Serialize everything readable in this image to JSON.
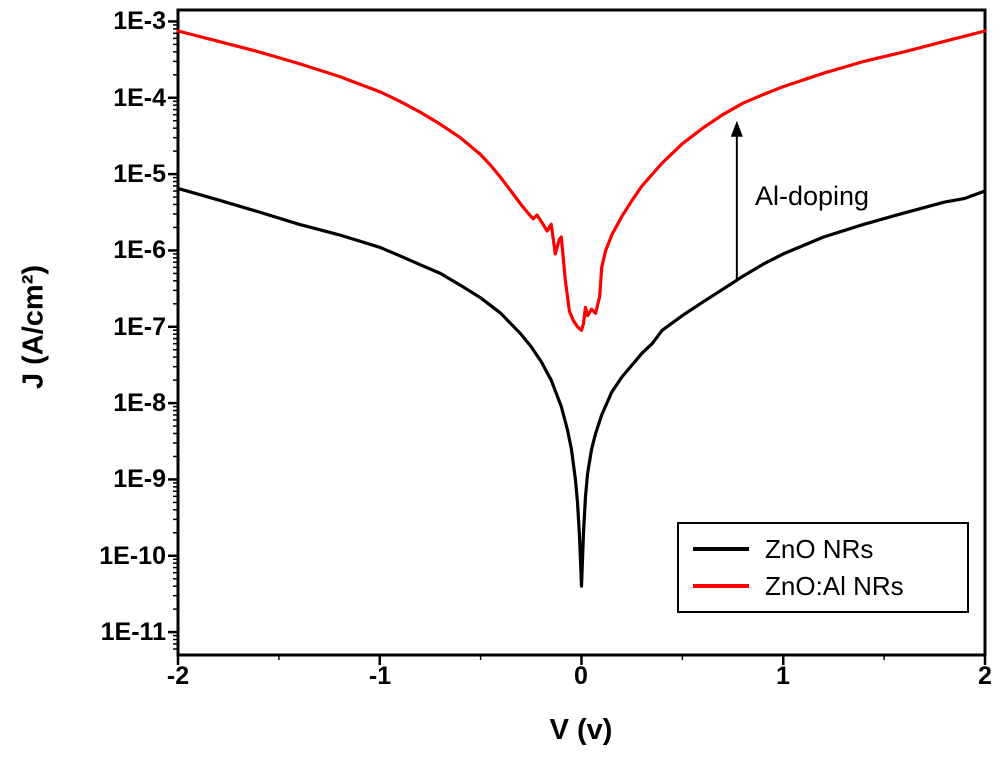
{
  "chart_data": {
    "type": "line",
    "title": "",
    "xlabel": "V (v)",
    "ylabel": "J (A/cm²)",
    "xlim": [
      -2,
      2
    ],
    "ylog_range_exponents": [
      -11.3,
      -2.85
    ],
    "grid": false,
    "x_ticks": [
      -2,
      -1,
      0,
      1,
      2
    ],
    "x_minor_ticks": [
      -1.5,
      -0.5,
      0.5,
      1.5
    ],
    "x_tick_labels": [
      "-2",
      "-1",
      "0",
      "1",
      "2"
    ],
    "y_tick_labels": [
      "1E-3",
      "1E-4",
      "1E-5",
      "1E-6",
      "1E-7",
      "1E-8",
      "1E-9",
      "1E-10",
      "1E-11"
    ],
    "legend_position": "bottom-right-inside",
    "annotation": {
      "text": "Al-doping",
      "arrow": {
        "x": 0.77,
        "from": 4e-07,
        "to": 5e-05
      }
    },
    "series": [
      {
        "name": "ZnO NRs",
        "color": "#000000",
        "points": [
          [
            -2.0,
            6.5e-06
          ],
          [
            -1.8,
            4.6e-06
          ],
          [
            -1.6,
            3.2e-06
          ],
          [
            -1.4,
            2.2e-06
          ],
          [
            -1.2,
            1.6e-06
          ],
          [
            -1.0,
            1.1e-06
          ],
          [
            -0.9,
            8.5e-07
          ],
          [
            -0.8,
            6.5e-07
          ],
          [
            -0.7,
            5e-07
          ],
          [
            -0.6,
            3.5e-07
          ],
          [
            -0.5,
            2.4e-07
          ],
          [
            -0.4,
            1.5e-07
          ],
          [
            -0.3,
            8e-08
          ],
          [
            -0.25,
            5.5e-08
          ],
          [
            -0.2,
            3.5e-08
          ],
          [
            -0.15,
            2e-08
          ],
          [
            -0.1,
            9e-09
          ],
          [
            -0.07,
            4.5e-09
          ],
          [
            -0.05,
            2.5e-09
          ],
          [
            -0.03,
            1e-09
          ],
          [
            -0.02,
            5e-10
          ],
          [
            -0.01,
            1.8e-10
          ],
          [
            0.0,
            4e-11
          ],
          [
            0.01,
            2e-10
          ],
          [
            0.02,
            6e-10
          ],
          [
            0.03,
            1.2e-09
          ],
          [
            0.05,
            2.5e-09
          ],
          [
            0.07,
            4e-09
          ],
          [
            0.1,
            7e-09
          ],
          [
            0.15,
            1.4e-08
          ],
          [
            0.2,
            2.2e-08
          ],
          [
            0.3,
            4.5e-08
          ],
          [
            0.35,
            6e-08
          ],
          [
            0.4,
            9e-08
          ],
          [
            0.5,
            1.4e-07
          ],
          [
            0.6,
            2.1e-07
          ],
          [
            0.7,
            3.1e-07
          ],
          [
            0.8,
            4.6e-07
          ],
          [
            0.9,
            6.6e-07
          ],
          [
            1.0,
            9e-07
          ],
          [
            1.2,
            1.5e-06
          ],
          [
            1.4,
            2.2e-06
          ],
          [
            1.6,
            3.1e-06
          ],
          [
            1.8,
            4.3e-06
          ],
          [
            1.9,
            4.8e-06
          ],
          [
            2.0,
            6e-06
          ]
        ]
      },
      {
        "name": "ZnO:Al NRs",
        "color": "#ff0000",
        "points": [
          [
            -2.0,
            0.00075
          ],
          [
            -1.8,
            0.00055
          ],
          [
            -1.6,
            0.0004
          ],
          [
            -1.4,
            0.00028
          ],
          [
            -1.2,
            0.00019
          ],
          [
            -1.0,
            0.00012
          ],
          [
            -0.9,
            9e-05
          ],
          [
            -0.8,
            6.5e-05
          ],
          [
            -0.7,
            4.5e-05
          ],
          [
            -0.6,
            3e-05
          ],
          [
            -0.5,
            1.8e-05
          ],
          [
            -0.45,
            1.3e-05
          ],
          [
            -0.4,
            9e-06
          ],
          [
            -0.35,
            6e-06
          ],
          [
            -0.3,
            4e-06
          ],
          [
            -0.27,
            3.2e-06
          ],
          [
            -0.24,
            2.6e-06
          ],
          [
            -0.22,
            2.9e-06
          ],
          [
            -0.2,
            2.4e-06
          ],
          [
            -0.17,
            1.8e-06
          ],
          [
            -0.15,
            2.2e-06
          ],
          [
            -0.13,
            9e-07
          ],
          [
            -0.11,
            1.4e-06
          ],
          [
            -0.1,
            1.5e-06
          ],
          [
            -0.08,
            4e-07
          ],
          [
            -0.06,
            1.6e-07
          ],
          [
            -0.04,
            1.2e-07
          ],
          [
            -0.02,
            1e-07
          ],
          [
            0.0,
            9e-08
          ],
          [
            0.01,
            1.1e-07
          ],
          [
            0.02,
            1.8e-07
          ],
          [
            0.03,
            1.4e-07
          ],
          [
            0.05,
            1.7e-07
          ],
          [
            0.07,
            1.5e-07
          ],
          [
            0.09,
            2.5e-07
          ],
          [
            0.1,
            6e-07
          ],
          [
            0.12,
            1e-06
          ],
          [
            0.15,
            1.6e-06
          ],
          [
            0.2,
            2.8e-06
          ],
          [
            0.25,
            4.5e-06
          ],
          [
            0.3,
            7e-06
          ],
          [
            0.4,
            1.4e-05
          ],
          [
            0.5,
            2.5e-05
          ],
          [
            0.6,
            4e-05
          ],
          [
            0.7,
            6e-05
          ],
          [
            0.8,
            8.5e-05
          ],
          [
            0.9,
            0.00011
          ],
          [
            1.0,
            0.00014
          ],
          [
            1.2,
            0.00021
          ],
          [
            1.4,
            0.0003
          ],
          [
            1.6,
            0.0004
          ],
          [
            1.8,
            0.00055
          ],
          [
            2.0,
            0.00075
          ]
        ]
      }
    ]
  }
}
